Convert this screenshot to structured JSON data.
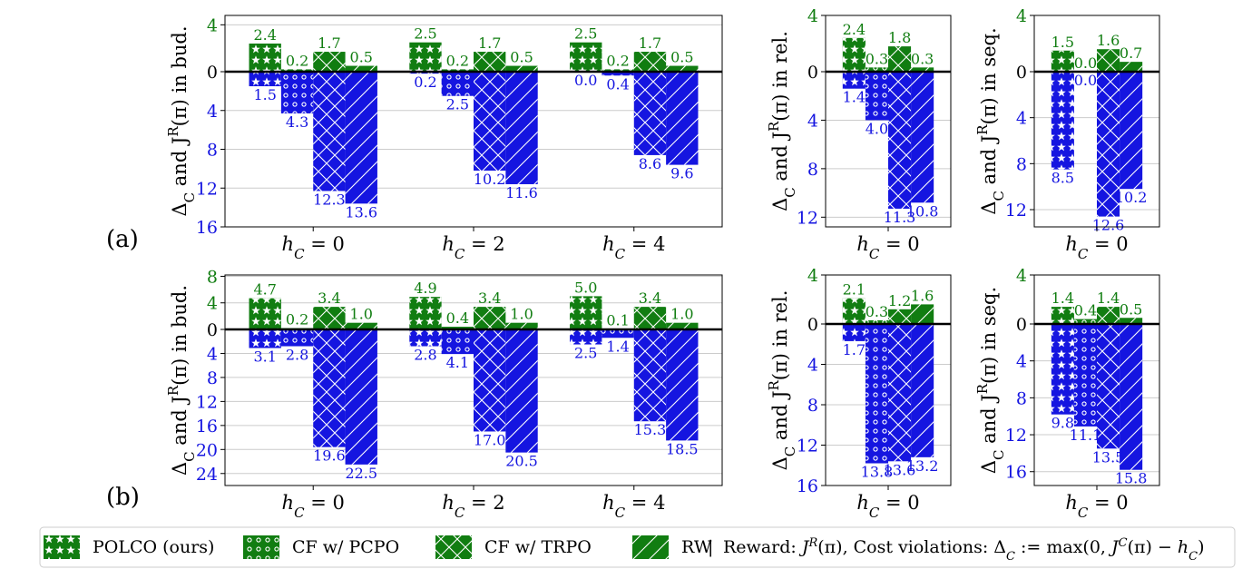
{
  "colors": {
    "reward": "#117d11",
    "cost": "#1515e0",
    "axis": "#000000",
    "grid": "#cccccc"
  },
  "row_labels": [
    "(a)",
    "(b)"
  ],
  "legend": {
    "entries": [
      {
        "name": "POLCO (ours)",
        "hatch": "star"
      },
      {
        "name": "CF w/ PCPO",
        "hatch": "circle"
      },
      {
        "name": "CF w/ TRPO",
        "hatch": "cross"
      },
      {
        "name": "RW",
        "hatch": "slash"
      }
    ],
    "separator": "|",
    "caption": "Reward: J^R(π), Cost violations: Δ_C := max(0, J^C(π) − h_C)"
  },
  "chart_data": [
    {
      "type": "bar",
      "row": "(a)",
      "ylabel": "Δ_C and J^R(π) in bud.",
      "categories": [
        "h_C = 0",
        "h_C = 2",
        "h_C = 4"
      ],
      "ylim_top": 4.8,
      "ylim_bottom": 16,
      "ticks_top": [
        4
      ],
      "ticks_bottom": [
        4,
        8,
        12,
        16
      ],
      "series": [
        {
          "name": "POLCO (ours)",
          "hatch": "star",
          "reward": [
            2.4,
            2.5,
            2.5
          ],
          "cost": [
            1.5,
            0.2,
            0.0
          ]
        },
        {
          "name": "CF w/ PCPO",
          "hatch": "circle",
          "reward": [
            0.2,
            0.2,
            0.2
          ],
          "cost": [
            4.3,
            2.5,
            0.4
          ]
        },
        {
          "name": "CF w/ TRPO",
          "hatch": "cross",
          "reward": [
            1.7,
            1.7,
            1.7
          ],
          "cost": [
            12.3,
            10.2,
            8.6
          ]
        },
        {
          "name": "RW",
          "hatch": "slash",
          "reward": [
            0.5,
            0.5,
            0.5
          ],
          "cost": [
            13.6,
            11.6,
            9.6
          ]
        }
      ]
    },
    {
      "type": "bar",
      "row": "(a)",
      "ylabel": "Δ_C and J^R(π) in rel.",
      "categories": [
        "h_C = 0"
      ],
      "ylim_top": 4.0,
      "ylim_bottom": 12.8,
      "ticks_top": [
        4
      ],
      "ticks_bottom": [
        4,
        8,
        12
      ],
      "series": [
        {
          "name": "POLCO (ours)",
          "hatch": "star",
          "reward": [
            2.4
          ],
          "cost": [
            1.4
          ]
        },
        {
          "name": "CF w/ PCPO",
          "hatch": "circle",
          "reward": [
            0.3
          ],
          "cost": [
            4.0
          ]
        },
        {
          "name": "CF w/ TRPO",
          "hatch": "cross",
          "reward": [
            1.8
          ],
          "cost": [
            11.3
          ]
        },
        {
          "name": "RW",
          "hatch": "slash",
          "reward": [
            0.3
          ],
          "cost": [
            10.8
          ]
        }
      ]
    },
    {
      "type": "bar",
      "row": "(a)",
      "ylabel": "Δ_C and J^R(π) in seq.",
      "categories": [
        "h_C = 0"
      ],
      "ylim_top": 4.0,
      "ylim_bottom": 13.5,
      "ticks_top": [
        4
      ],
      "ticks_bottom": [
        4,
        8,
        12
      ],
      "series": [
        {
          "name": "POLCO (ours)",
          "hatch": "star",
          "reward": [
            1.5
          ],
          "cost": [
            8.5
          ]
        },
        {
          "name": "CF w/ PCPO",
          "hatch": "circle",
          "reward": [
            0.0
          ],
          "cost": [
            0.0
          ]
        },
        {
          "name": "CF w/ TRPO",
          "hatch": "cross",
          "reward": [
            1.6
          ],
          "cost": [
            12.6
          ]
        },
        {
          "name": "RW",
          "hatch": "slash",
          "reward": [
            0.7
          ],
          "cost": [
            10.2
          ]
        }
      ]
    },
    {
      "type": "bar",
      "row": "(b)",
      "ylabel": "Δ_C and J^R(π) in bud.",
      "categories": [
        "h_C = 0",
        "h_C = 2",
        "h_C = 4"
      ],
      "ylim_top": 8.2,
      "ylim_bottom": 26,
      "ticks_top": [
        4,
        8
      ],
      "ticks_bottom": [
        4,
        8,
        12,
        16,
        20,
        24
      ],
      "series": [
        {
          "name": "POLCO (ours)",
          "hatch": "star",
          "reward": [
            4.7,
            4.9,
            5.0
          ],
          "cost": [
            3.1,
            2.8,
            2.5
          ]
        },
        {
          "name": "CF w/ PCPO",
          "hatch": "circle",
          "reward": [
            0.2,
            0.4,
            0.1
          ],
          "cost": [
            2.8,
            4.1,
            1.4
          ]
        },
        {
          "name": "CF w/ TRPO",
          "hatch": "cross",
          "reward": [
            3.4,
            3.4,
            3.4
          ],
          "cost": [
            19.6,
            17.0,
            15.3
          ]
        },
        {
          "name": "RW",
          "hatch": "slash",
          "reward": [
            1.0,
            1.0,
            1.0
          ],
          "cost": [
            22.5,
            20.5,
            18.5
          ]
        }
      ]
    },
    {
      "type": "bar",
      "row": "(b)",
      "ylabel": "Δ_C and J^R(π) in rel.",
      "categories": [
        "h_C = 0"
      ],
      "ylim_top": 4.0,
      "ylim_bottom": 16,
      "ticks_top": [
        4
      ],
      "ticks_bottom": [
        4,
        8,
        12,
        16
      ],
      "series": [
        {
          "name": "POLCO (ours)",
          "hatch": "star",
          "reward": [
            2.1
          ],
          "cost": [
            1.7
          ]
        },
        {
          "name": "CF w/ PCPO",
          "hatch": "circle",
          "reward": [
            0.3
          ],
          "cost": [
            13.8
          ]
        },
        {
          "name": "CF w/ TRPO",
          "hatch": "cross",
          "reward": [
            1.2
          ],
          "cost": [
            13.6
          ]
        },
        {
          "name": "RW",
          "hatch": "slash",
          "reward": [
            1.6
          ],
          "cost": [
            13.2
          ]
        }
      ]
    },
    {
      "type": "bar",
      "row": "(b)",
      "ylabel": "Δ_C and J^R(π) in seq.",
      "categories": [
        "h_C = 0"
      ],
      "ylim_top": 4.0,
      "ylim_bottom": 17.5,
      "ticks_top": [
        4
      ],
      "ticks_bottom": [
        4,
        8,
        12,
        16
      ],
      "series": [
        {
          "name": "POLCO (ours)",
          "hatch": "star",
          "reward": [
            1.4
          ],
          "cost": [
            9.8
          ]
        },
        {
          "name": "CF w/ PCPO",
          "hatch": "circle",
          "reward": [
            0.4
          ],
          "cost": [
            11.1
          ]
        },
        {
          "name": "CF w/ TRPO",
          "hatch": "cross",
          "reward": [
            1.4
          ],
          "cost": [
            13.5
          ]
        },
        {
          "name": "RW",
          "hatch": "slash",
          "reward": [
            0.5
          ],
          "cost": [
            15.8
          ]
        }
      ]
    }
  ]
}
